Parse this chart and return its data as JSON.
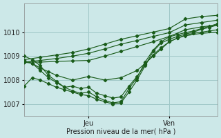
{
  "xlabel": "Pression niveau de la mer( hPa )",
  "bg_color": "#cce8e8",
  "grid_color": "#a0c8c8",
  "line_color": "#1a5c1a",
  "ylim": [
    1006.5,
    1011.2
  ],
  "xlim": [
    0,
    144
  ],
  "jeu_x": 48,
  "ven_x": 108,
  "ytick_positions": [
    1007,
    1008,
    1009,
    1010
  ],
  "ytick_labels": [
    "1007",
    "1008",
    "1009",
    "1010"
  ],
  "xtick_positions": [
    48,
    108
  ],
  "xtick_labels": [
    "Jeu",
    "Ven"
  ],
  "series": [
    {
      "x": [
        0,
        12,
        24,
        36,
        48,
        60,
        72,
        84,
        96,
        108,
        120,
        132,
        144
      ],
      "y": [
        1008.85,
        1008.95,
        1009.05,
        1009.15,
        1009.3,
        1009.5,
        1009.7,
        1009.85,
        1010.0,
        1010.15,
        1010.55,
        1010.65,
        1010.7
      ]
    },
    {
      "x": [
        0,
        12,
        24,
        36,
        48,
        60,
        72,
        84,
        96,
        108,
        120,
        132,
        144
      ],
      "y": [
        1008.75,
        1008.82,
        1008.9,
        1009.0,
        1009.12,
        1009.3,
        1009.5,
        1009.65,
        1009.82,
        1009.98,
        1010.3,
        1010.4,
        1010.5
      ]
    },
    {
      "x": [
        0,
        12,
        24,
        36,
        48,
        60,
        72,
        84,
        96,
        108,
        120,
        132,
        144
      ],
      "y": [
        1008.75,
        1008.75,
        1008.78,
        1008.8,
        1008.82,
        1009.0,
        1009.2,
        1009.4,
        1009.6,
        1009.82,
        1010.1,
        1010.22,
        1010.3
      ]
    },
    {
      "x": [
        0,
        6,
        12,
        18,
        24,
        36,
        48,
        60,
        72,
        84,
        90,
        96,
        102,
        108,
        114,
        120,
        126,
        132,
        138,
        144
      ],
      "y": [
        1008.75,
        1008.7,
        1008.5,
        1008.35,
        1008.2,
        1008.0,
        1008.15,
        1008.0,
        1008.1,
        1008.4,
        1008.7,
        1009.0,
        1009.3,
        1009.6,
        1009.75,
        1009.88,
        1009.95,
        1010.0,
        1010.05,
        1010.1
      ]
    },
    {
      "x": [
        0,
        6,
        12,
        18,
        24,
        30,
        36,
        42,
        48,
        54,
        60,
        66,
        72,
        78,
        84,
        90,
        96,
        102,
        108,
        114,
        120,
        132,
        144
      ],
      "y": [
        1008.8,
        1008.7,
        1008.4,
        1008.1,
        1007.9,
        1007.7,
        1007.75,
        1007.65,
        1007.7,
        1007.45,
        1007.35,
        1007.25,
        1007.3,
        1007.75,
        1008.15,
        1008.65,
        1009.05,
        1009.35,
        1009.6,
        1009.75,
        1009.85,
        1009.95,
        1010.0
      ]
    },
    {
      "x": [
        0,
        6,
        12,
        18,
        24,
        30,
        36,
        42,
        48,
        54,
        60,
        66,
        72,
        78,
        84,
        90,
        96,
        102,
        108,
        114,
        120,
        126,
        132,
        138,
        144
      ],
      "y": [
        1009.0,
        1008.85,
        1008.6,
        1008.2,
        1007.95,
        1007.7,
        1007.55,
        1007.45,
        1007.5,
        1007.3,
        1007.15,
        1007.05,
        1007.1,
        1007.65,
        1008.1,
        1008.75,
        1009.25,
        1009.6,
        1009.8,
        1009.9,
        1009.98,
        1010.05,
        1010.15,
        1010.25,
        1010.35
      ]
    },
    {
      "x": [
        0,
        6,
        12,
        18,
        24,
        30,
        36,
        42,
        48,
        54,
        60,
        66,
        72,
        78,
        84,
        90,
        96,
        102,
        108,
        114,
        120,
        126,
        132,
        138,
        144
      ],
      "y": [
        1007.75,
        1008.1,
        1008.0,
        1007.85,
        1007.7,
        1007.6,
        1007.5,
        1007.4,
        1007.35,
        1007.2,
        1007.1,
        1007.0,
        1007.05,
        1007.5,
        1008.0,
        1008.6,
        1009.2,
        1009.55,
        1009.7,
        1009.82,
        1009.92,
        1010.0,
        1010.12,
        1010.2,
        1010.3
      ]
    }
  ]
}
